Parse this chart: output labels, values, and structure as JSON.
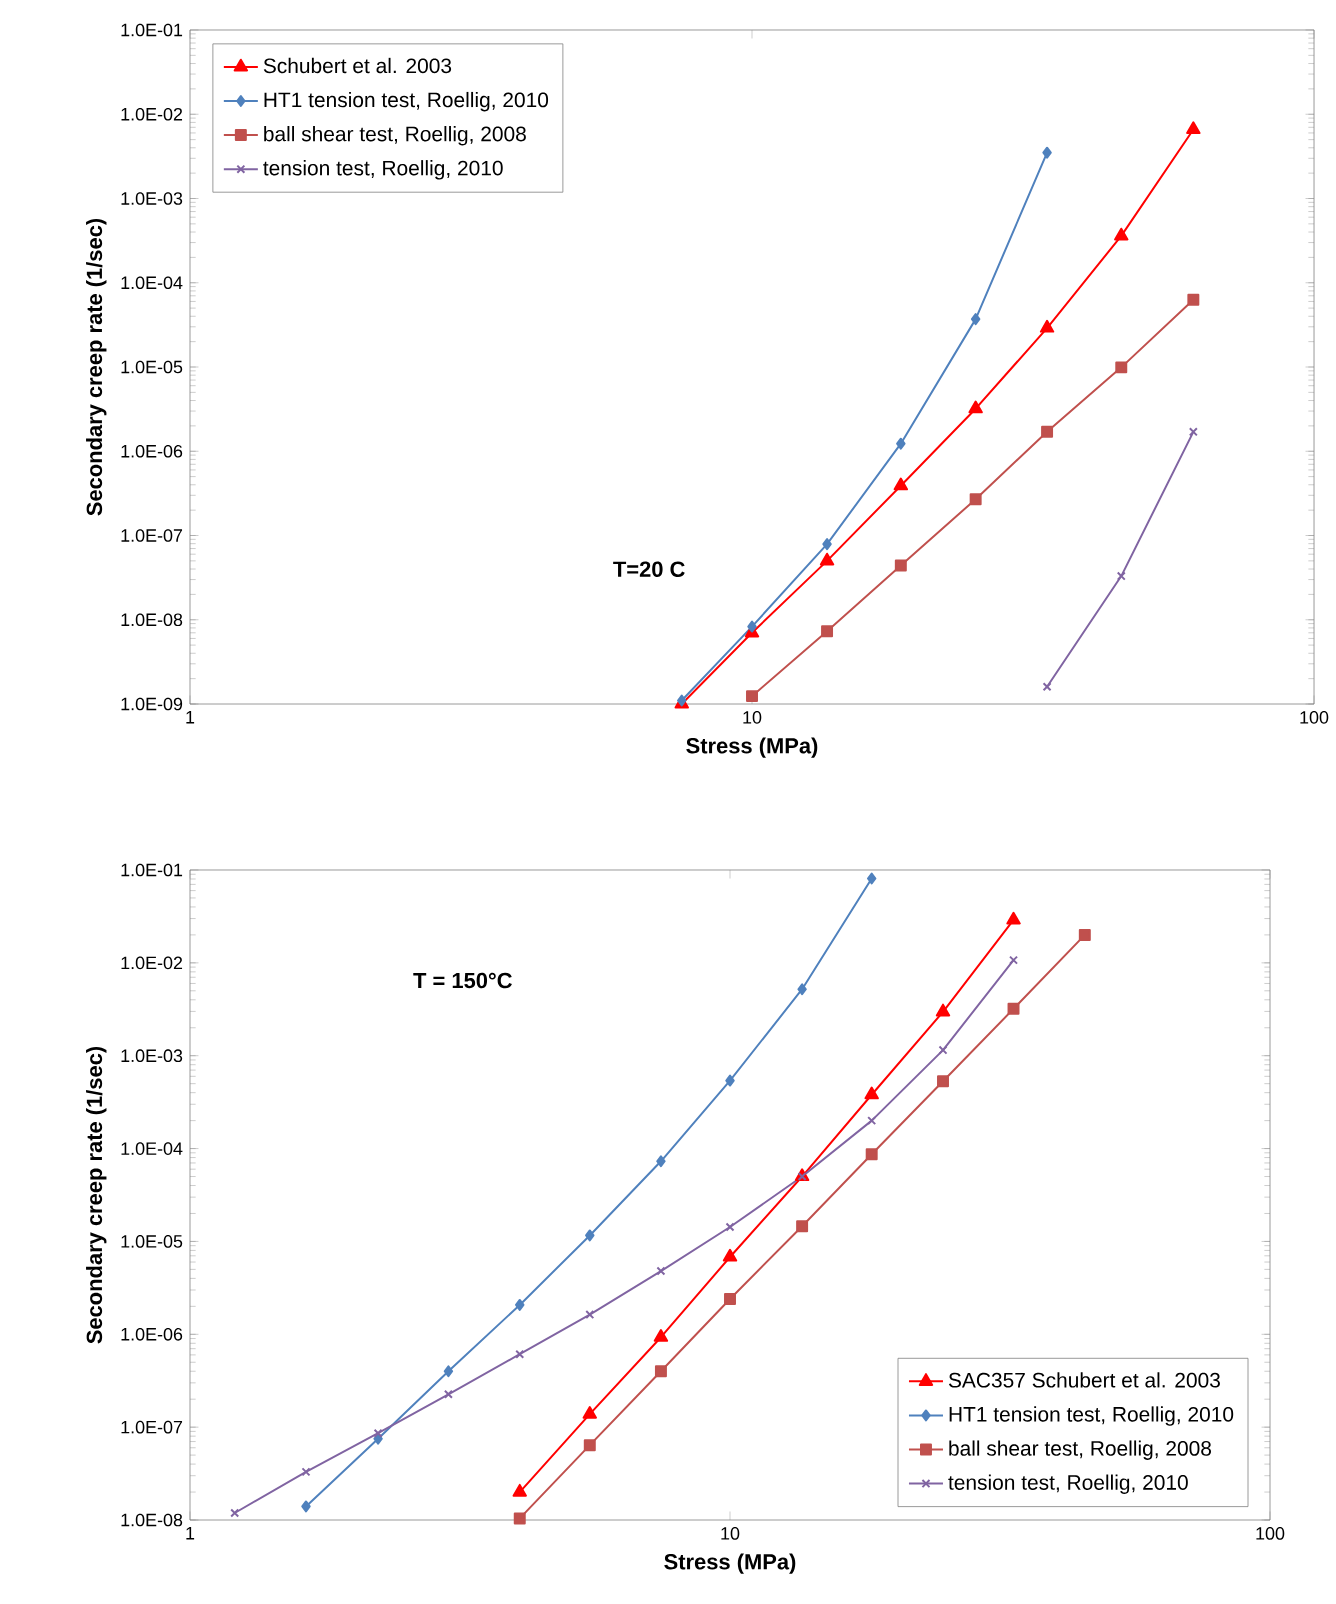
{
  "chart_data": [
    {
      "type": "line",
      "xlabel": "Stress (MPa)",
      "ylabel": "Secondary creep rate (1/sec)",
      "log": "xy",
      "xlim": [
        1,
        100
      ],
      "xticks": [
        1,
        10,
        100
      ],
      "ylim": [
        1e-09,
        0.1
      ],
      "yticks": [
        {
          "value": 1e-09,
          "label": "1.0E-09"
        },
        {
          "value": 1e-08,
          "label": "1.0E-08"
        },
        {
          "value": 1e-07,
          "label": "1.0E-07"
        },
        {
          "value": 1e-06,
          "label": "1.0E-06"
        },
        {
          "value": 1e-05,
          "label": "1.0E-05"
        },
        {
          "value": 0.0001,
          "label": "1.0E-04"
        },
        {
          "value": 0.001,
          "label": "1.0E-03"
        },
        {
          "value": 0.01,
          "label": "1.0E-02"
        },
        {
          "value": 0.1,
          "label": "1.0E-01"
        }
      ],
      "legend": "top left",
      "grid": false,
      "line_style": "solid",
      "annotations": [
        "T=20 C"
      ],
      "series": [
        {
          "name": "Schubert et al. 2003",
          "color": "#ff0000",
          "marker": "triangle",
          "x": [
            7.5,
            10,
            13.6,
            18.4,
            25,
            33.5,
            45.4,
            61
          ],
          "values": [
            1e-09,
            7e-09,
            5e-08,
            3.9e-07,
            3.2e-06,
            2.9e-05,
            0.00036,
            0.0066
          ]
        },
        {
          "name": "HT1 tension test, Roellig, 2010",
          "color": "#4f81bd",
          "marker": "diamond",
          "x": [
            7.5,
            10,
            13.6,
            18.4,
            25,
            33.5
          ],
          "values": [
            1.1e-09,
            8.3e-09,
            7.9e-08,
            1.23e-06,
            3.7e-05,
            0.0035
          ]
        },
        {
          "name": "ball shear test, Roellig, 2008",
          "color": "#c0504d",
          "marker": "square",
          "x": [
            10,
            13.6,
            18.4,
            25,
            33.5,
            45.4,
            61
          ],
          "values": [
            1.24e-09,
            7.3e-09,
            4.4e-08,
            2.7e-07,
            1.7e-06,
            9.9e-06,
            6.3e-05
          ]
        },
        {
          "name": "tension test, Roellig, 2010",
          "color": "#8064a2",
          "marker": "cross",
          "x": [
            33.5,
            45.4,
            61
          ],
          "values": [
            1.6e-09,
            3.3e-08,
            1.7e-06
          ]
        }
      ]
    },
    {
      "type": "line",
      "xlabel": "Stress (MPa)",
      "ylabel": "Secondary creep rate (1/sec)",
      "log": "xy",
      "xlim": [
        1,
        100
      ],
      "xticks": [
        1,
        10,
        100
      ],
      "ylim": [
        1e-08,
        0.1
      ],
      "yticks": [
        {
          "value": 1e-08,
          "label": "1.0E-08"
        },
        {
          "value": 1e-07,
          "label": "1.0E-07"
        },
        {
          "value": 1e-06,
          "label": "1.0E-06"
        },
        {
          "value": 1e-05,
          "label": "1.0E-05"
        },
        {
          "value": 0.0001,
          "label": "1.0E-04"
        },
        {
          "value": 0.001,
          "label": "1.0E-03"
        },
        {
          "value": 0.01,
          "label": "1.0E-02"
        },
        {
          "value": 0.1,
          "label": "1.0E-01"
        }
      ],
      "legend": "bottom right",
      "grid": false,
      "line_style": "solid",
      "annotations": [
        "T = 150°C"
      ],
      "series": [
        {
          "name": "SAC357 Schubert et al. 2003",
          "color": "#ff0000",
          "marker": "triangle",
          "x": [
            4.08,
            5.5,
            7.45,
            10,
            13.6,
            18.3,
            24.8,
            33.5
          ],
          "values": [
            2e-08,
            1.38e-07,
            9.3e-07,
            6.8e-06,
            5e-05,
            0.00038,
            0.00297,
            0.029
          ]
        },
        {
          "name": "HT1 tension test, Roellig, 2010",
          "color": "#4f81bd",
          "marker": "diamond",
          "x": [
            1.64,
            2.23,
            3.01,
            4.08,
            5.5,
            7.45,
            10,
            13.6,
            18.3
          ],
          "values": [
            1.4e-08,
            7.5e-08,
            4e-07,
            2.07e-06,
            1.16e-05,
            7.3e-05,
            0.00054,
            0.0052,
            0.081
          ]
        },
        {
          "name": "ball shear test, Roellig, 2008",
          "color": "#c0504d",
          "marker": "square",
          "x": [
            4.08,
            5.5,
            7.45,
            10,
            13.6,
            18.3,
            24.8,
            33.5,
            45.4
          ],
          "values": [
            1.04e-08,
            6.4e-08,
            4e-07,
            2.4e-06,
            1.46e-05,
            8.7e-05,
            0.00053,
            0.0032,
            0.02
          ]
        },
        {
          "name": "tension test, Roellig, 2010",
          "color": "#8064a2",
          "marker": "cross",
          "x": [
            1.21,
            1.64,
            2.23,
            3.01,
            4.08,
            5.5,
            7.45,
            10,
            13.6,
            18.3,
            24.8,
            33.5
          ],
          "values": [
            1.19e-08,
            3.3e-08,
            8.6e-08,
            2.26e-07,
            6.1e-07,
            1.63e-06,
            4.8e-06,
            1.43e-05,
            5e-05,
            0.0002,
            0.00115,
            0.0107
          ]
        }
      ]
    }
  ]
}
